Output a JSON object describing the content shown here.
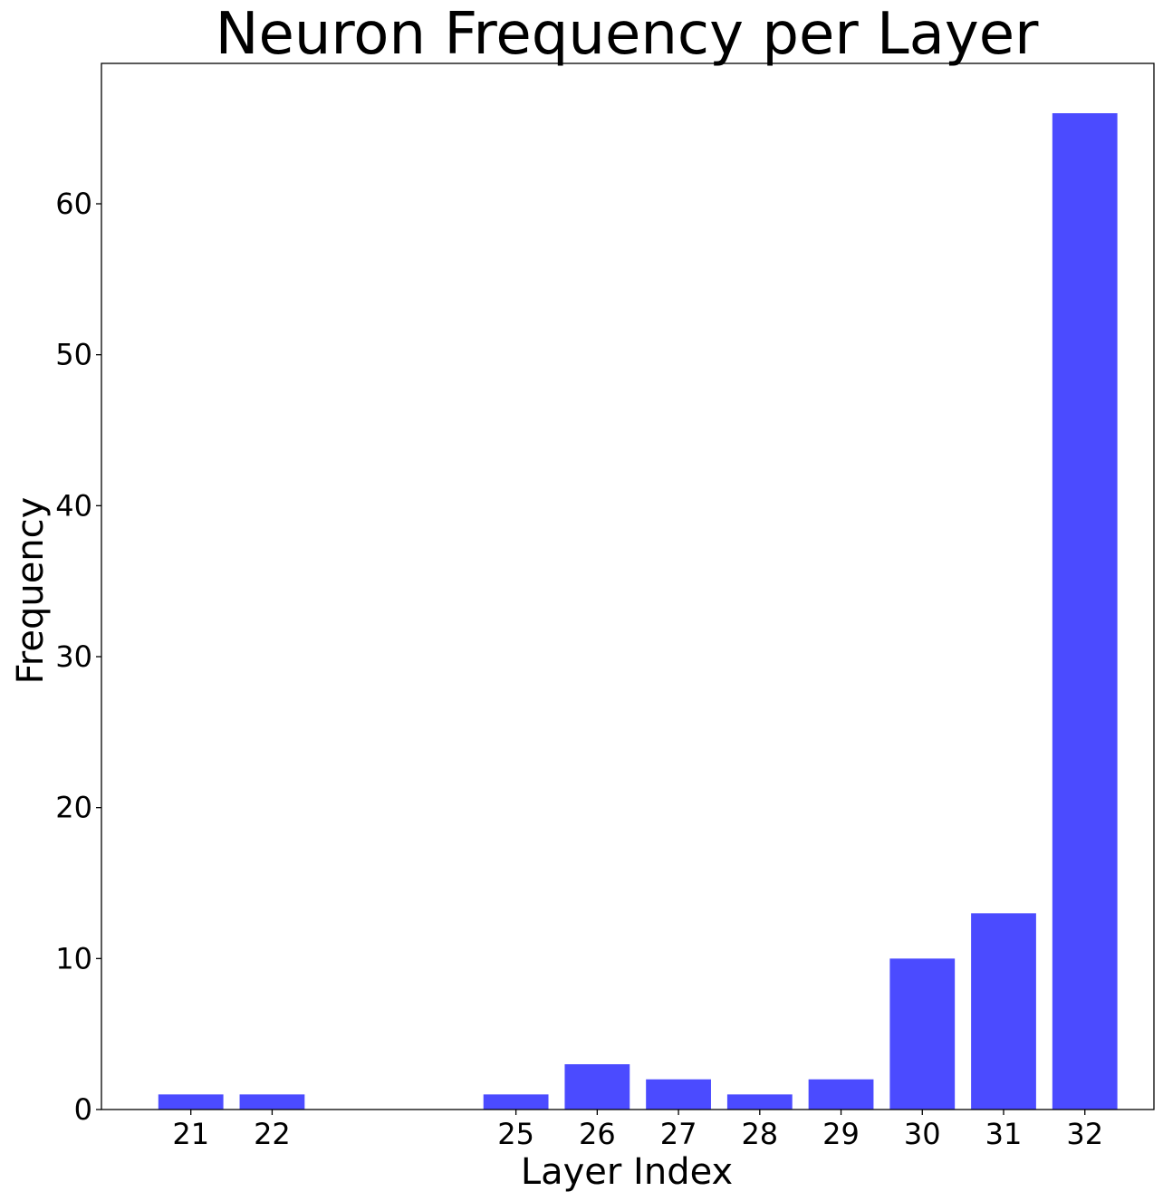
{
  "chart_data": {
    "type": "bar",
    "title": "Neuron Frequency per Layer",
    "xlabel": "Layer Index",
    "ylabel": "Frequency",
    "x": [
      21,
      22,
      25,
      26,
      27,
      28,
      29,
      30,
      31,
      32
    ],
    "values": [
      1,
      1,
      1,
      3,
      2,
      1,
      2,
      10,
      13,
      66
    ],
    "xlim": [
      19.9,
      32.85
    ],
    "ylim": [
      0,
      69.3
    ],
    "yticks": [
      0,
      10,
      20,
      30,
      40,
      50,
      60
    ],
    "grid": false,
    "bar_color": "#4b4bff"
  }
}
